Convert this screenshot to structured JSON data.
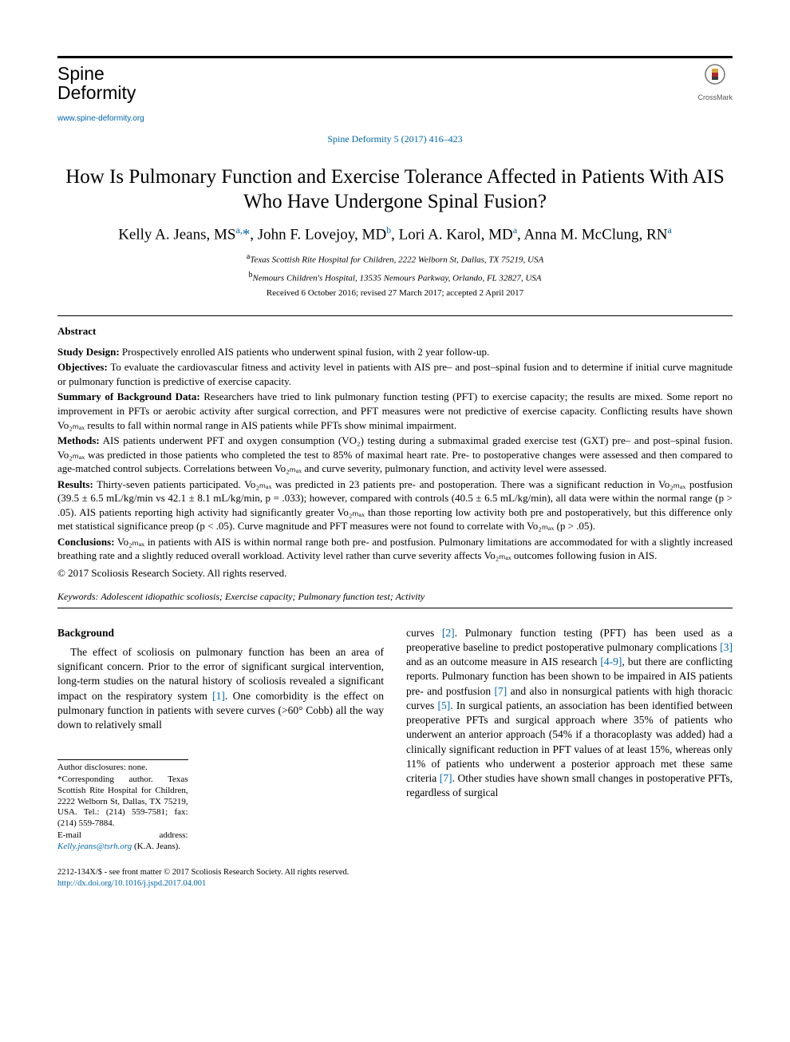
{
  "journal": {
    "name_line1": "Spine",
    "name_line2": "Deformity",
    "url": "www.spine-deformity.org",
    "citation": "Spine Deformity 5 (2017) 416–423",
    "crossmark_label": "CrossMark"
  },
  "article": {
    "title": "How Is Pulmonary Function and Exercise Tolerance Affected in Patients With AIS Who Have Undergone Spinal Fusion?",
    "authors_html": "Kelly A. Jeans, MS<sup>a,</sup><a class='corr'>*</a>, John F. Lovejoy, MD<sup>b</sup>, Lori A. Karol, MD<sup>a</sup>, Anna M. McClung, RN<sup>a</sup>",
    "affiliations": [
      {
        "key": "a",
        "text": "Texas Scottish Rite Hospital for Children, 2222 Welborn St, Dallas, TX 75219, USA"
      },
      {
        "key": "b",
        "text": "Nemours Children's Hospital, 13535 Nemours Parkway, Orlando, FL 32827, USA"
      }
    ],
    "dates": "Received 6 October 2016; revised 27 March 2017; accepted 2 April 2017"
  },
  "abstract": {
    "heading": "Abstract",
    "sections": [
      {
        "label": "Study Design:",
        "text": " Prospectively enrolled AIS patients who underwent spinal fusion, with 2 year follow-up."
      },
      {
        "label": "Objectives:",
        "text": " To evaluate the cardiovascular fitness and activity level in patients with AIS pre– and post–spinal fusion and to determine if initial curve magnitude or pulmonary function is predictive of exercise capacity."
      },
      {
        "label": "Summary of Background Data:",
        "text": " Researchers have tried to link pulmonary function testing (PFT) to exercise capacity; the results are mixed. Some report no improvement in PFTs or aerobic activity after surgical correction, and PFT measures were not predictive of exercise capacity. Conflicting results have shown Vo₂ₘₐₓ results to fall within normal range in AIS patients while PFTs show minimal impairment."
      },
      {
        "label": "Methods:",
        "text": " AIS patients underwent PFT and oxygen consumption (VO₂) testing during a submaximal graded exercise test (GXT) pre– and post–spinal fusion. Vo₂ₘₐₓ was predicted in those patients who completed the test to 85% of maximal heart rate. Pre- to postoperative changes were assessed and then compared to age-matched control subjects. Correlations between Vo₂ₘₐₓ and curve severity, pulmonary function, and activity level were assessed."
      },
      {
        "label": "Results:",
        "text": " Thirty-seven patients participated. Vo₂ₘₐₓ was predicted in 23 patients pre- and postoperation. There was a significant reduction in Vo₂ₘₐₓ postfusion (39.5 ± 6.5 mL/kg/min vs 42.1 ± 8.1 mL/kg/min, p = .033); however, compared with controls (40.5 ± 6.5 mL/kg/min), all data were within the normal range (p > .05). AIS patients reporting high activity had significantly greater Vo₂ₘₐₓ than those reporting low activity both pre and postoperatively, but this difference only met statistical significance preop (p < .05). Curve magnitude and PFT measures were not found to correlate with Vo₂ₘₐₓ (p > .05)."
      },
      {
        "label": "Conclusions:",
        "text": " Vo₂ₘₐₓ in patients with AIS is within normal range both pre- and postfusion. Pulmonary limitations are accommodated for with a slightly increased breathing rate and a slightly reduced overall workload. Activity level rather than curve severity affects Vo₂ₘₐₓ outcomes following fusion in AIS."
      }
    ],
    "copyright": "© 2017 Scoliosis Research Society. All rights reserved.",
    "keywords_label": "Keywords:",
    "keywords": " Adolescent idiopathic scoliosis; Exercise capacity; Pulmonary function test; Activity"
  },
  "body": {
    "background_heading": "Background",
    "col1_html": "The effect of scoliosis on pulmonary function has been an area of significant concern. Prior to the error of significant surgical intervention, long-term studies on the natural history of scoliosis revealed a significant impact on the respiratory system <span class='cite'>[1]</span>. One comorbidity is the effect on pulmonary function in patients with severe curves (>60° Cobb) all the way down to relatively small",
    "col2_html": "curves <span class='cite'>[2]</span>. Pulmonary function testing (PFT) has been used as a preoperative baseline to predict postoperative pulmonary complications <span class='cite'>[3]</span> and as an outcome measure in AIS research <span class='cite'>[4-9]</span>, but there are conflicting reports. Pulmonary function has been shown to be impaired in AIS patients pre- and postfusion <span class='cite'>[7]</span> and also in nonsurgical patients with high thoracic curves <span class='cite'>[5]</span>. In surgical patients, an association has been identified between preoperative PFTs and surgical approach where 35% of patients who underwent an anterior approach (54% if a thoracoplasty was added) had a clinically significant reduction in PFT values of at least 15%, whereas only 11% of patients who underwent a posterior approach met these same criteria <span class='cite'>[7]</span>. Other studies have shown small changes in postoperative PFTs, regardless of surgical"
  },
  "footnotes": {
    "disclosure": "Author disclosures: none.",
    "corresponding": "*Corresponding author. Texas Scottish Rite Hospital for Children, 2222 Welborn St, Dallas, TX 75219, USA. Tel.: (214) 559-7581; fax: (214) 559-7884.",
    "email_label": "E-mail address: ",
    "email": "Kelly.jeans@tsrh.org",
    "email_suffix": " (K.A. Jeans)."
  },
  "footer": {
    "left": "2212-134X/$ - see front matter © 2017 Scoliosis Research Society. All rights reserved.",
    "doi": "http://dx.doi.org/10.1016/j.jspd.2017.04.001"
  },
  "colors": {
    "link": "#0066aa",
    "text": "#000000",
    "bg": "#ffffff"
  },
  "crossmark_svg": {
    "ring_color": "#7a7a7a",
    "top_color": "#d9a23a",
    "mid_color": "#b0272f",
    "bot_color": "#3a3a3a"
  }
}
